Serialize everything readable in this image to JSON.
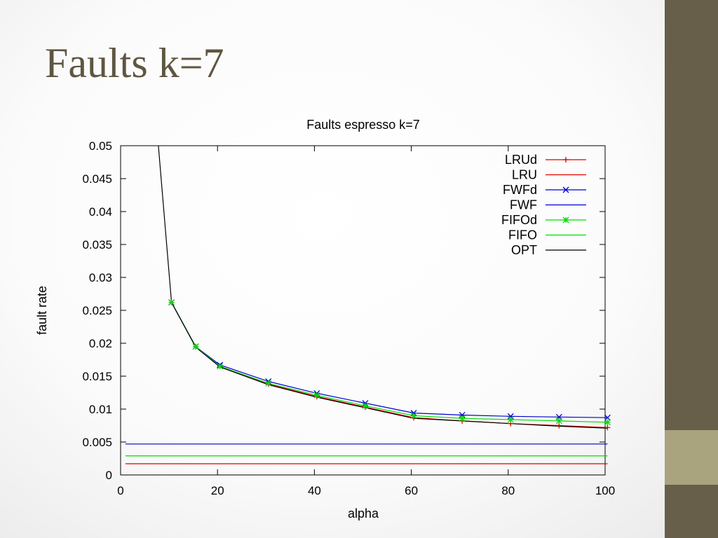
{
  "slide": {
    "title": "Faults k=7"
  },
  "chart_data": {
    "type": "line",
    "title": "Faults espresso k=7",
    "xlabel": "alpha",
    "ylabel": "fault rate",
    "xlim": [
      0,
      100
    ],
    "ylim": [
      0,
      0.05
    ],
    "xticks": [
      "0",
      "20",
      "40",
      "60",
      "80",
      "100"
    ],
    "yticks": [
      "0",
      "0.005",
      "0.01",
      "0.015",
      "0.02",
      "0.025",
      "0.03",
      "0.035",
      "0.04",
      "0.045",
      "0.05"
    ],
    "legend_position": "top-right",
    "grid": false,
    "x": [
      10.5,
      15.5,
      20.5,
      30.5,
      40.5,
      50.5,
      60.5,
      70.5,
      80.5,
      90.5,
      100.5
    ],
    "series": [
      {
        "name": "LRUd",
        "color": "#e00000",
        "marker": "plus",
        "values": [
          0.0262,
          0.0195,
          0.0165,
          0.0138,
          0.0119,
          0.0103,
          0.0087,
          0.0082,
          0.0078,
          0.0075,
          0.0072
        ]
      },
      {
        "name": "LRU",
        "color": "#e00000",
        "marker": "none",
        "constant": 0.0017
      },
      {
        "name": "FWFd",
        "color": "#0000d0",
        "marker": "x",
        "values": [
          0.0262,
          0.0195,
          0.0167,
          0.0142,
          0.0124,
          0.0109,
          0.0094,
          0.0091,
          0.0089,
          0.0088,
          0.0087
        ]
      },
      {
        "name": "FWF",
        "color": "#0000d0",
        "marker": "none",
        "constant": 0.0047
      },
      {
        "name": "FIFOd",
        "color": "#00dd00",
        "marker": "star",
        "values": [
          0.0262,
          0.0195,
          0.0165,
          0.0139,
          0.0121,
          0.0105,
          0.009,
          0.0086,
          0.0084,
          0.0082,
          0.008
        ]
      },
      {
        "name": "FIFO",
        "color": "#00dd00",
        "marker": "none",
        "constant": 0.0029
      },
      {
        "name": "OPT",
        "color": "#000000",
        "marker": "none",
        "x": [
          7.8,
          10.5,
          15.5,
          20.5,
          30.5,
          40.5,
          50.5,
          60.5,
          70.5,
          80.5,
          90.5,
          100.5
        ],
        "values": [
          0.05,
          0.0262,
          0.0194,
          0.0164,
          0.0137,
          0.0118,
          0.0102,
          0.0086,
          0.0082,
          0.0078,
          0.0074,
          0.0071
        ]
      }
    ]
  }
}
